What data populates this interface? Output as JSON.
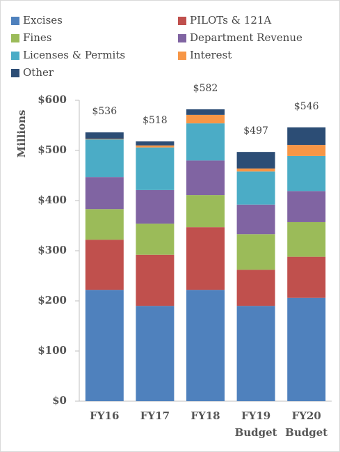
{
  "chart_data": {
    "type": "stacked_bar",
    "y_label": "Millions",
    "categories": [
      "FY16",
      "FY17",
      "FY18",
      "FY19 Budget",
      "FY20 Budget"
    ],
    "series": [
      {
        "name": "Excises",
        "color": "#4f81bd",
        "values": [
          222,
          190,
          222,
          190,
          206
        ]
      },
      {
        "name": "PILOTs & 121A",
        "color": "#c0504d",
        "values": [
          100,
          102,
          125,
          72,
          82
        ]
      },
      {
        "name": "Fines",
        "color": "#9bbb59",
        "values": [
          61,
          62,
          64,
          71,
          69
        ]
      },
      {
        "name": "Department Revenue",
        "color": "#8064a2",
        "values": [
          64,
          67,
          69,
          59,
          62
        ]
      },
      {
        "name": "Licenses & Permits",
        "color": "#4bacc6",
        "values": [
          75,
          85,
          74,
          66,
          70
        ]
      },
      {
        "name": "Interest",
        "color": "#f79646",
        "values": [
          1,
          4,
          17,
          6,
          22
        ]
      },
      {
        "name": "Other",
        "color": "#2c4d75",
        "values": [
          13,
          8,
          11,
          33,
          35
        ]
      }
    ],
    "total_labels": [
      "$536",
      "$518",
      "$582",
      "$497",
      "$546"
    ],
    "ylim": [
      0,
      600
    ],
    "yticks": [
      {
        "value": 0,
        "label": "$0"
      },
      {
        "value": 100,
        "label": "$100"
      },
      {
        "value": 200,
        "label": "$200"
      },
      {
        "value": 300,
        "label": "$300"
      },
      {
        "value": 400,
        "label": "$400"
      },
      {
        "value": 500,
        "label": "$500"
      },
      {
        "value": 600,
        "label": "$600"
      }
    ]
  }
}
